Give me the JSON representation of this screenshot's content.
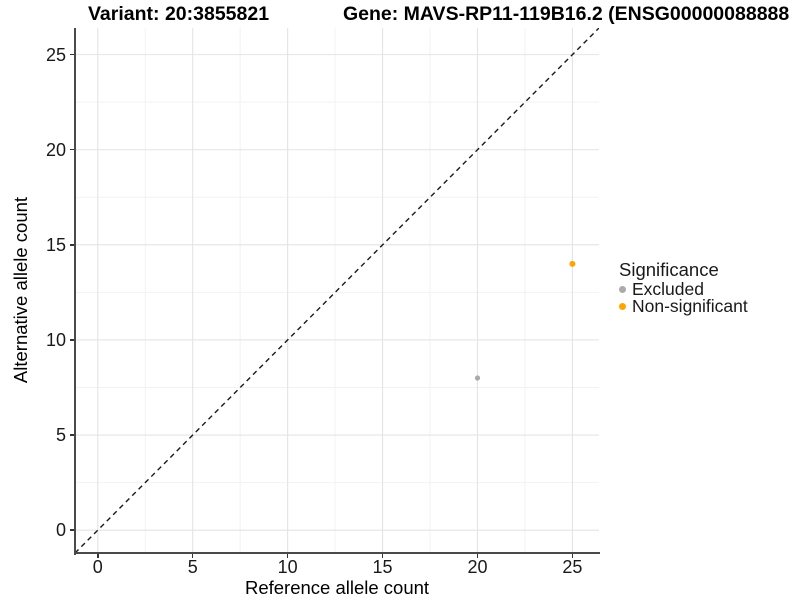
{
  "title": {
    "variant_label": "Variant: 20:3855821",
    "gene_label": "Gene: MAVS-RP11-119B16.2 (ENSG00000088888"
  },
  "chart_data": {
    "type": "scatter",
    "xlabel": "Reference allele count",
    "ylabel": "Alternative allele count",
    "xlim": [
      -1.2,
      26.4
    ],
    "ylim": [
      -1.2,
      26.4
    ],
    "x_ticks": [
      0,
      5,
      10,
      15,
      20,
      25
    ],
    "y_ticks": [
      0,
      5,
      10,
      15,
      20,
      25
    ],
    "x_minor_ticks": [
      2.5,
      7.5,
      12.5,
      17.5,
      22.5
    ],
    "y_minor_ticks": [
      2.5,
      7.5,
      12.5,
      17.5,
      22.5
    ],
    "grid": "major+minor",
    "reference_line": {
      "type": "identity y=x",
      "style": "dashed",
      "color": "#1a1a1a"
    },
    "legend_position": "right",
    "series": [
      {
        "name": "Excluded",
        "color": "#AAAAAA",
        "points": [
          [
            20,
            8
          ]
        ]
      },
      {
        "name": "Non-significant",
        "color": "#FFA500",
        "points": [
          [
            25,
            14
          ]
        ]
      }
    ]
  },
  "legend": {
    "title": "Significance",
    "items": [
      {
        "label": "Excluded",
        "color": "#AAAAAA"
      },
      {
        "label": "Non-significant",
        "color": "#FFA500"
      }
    ]
  },
  "colors": {
    "excluded": "#AAAAAA",
    "non_significant": "#FFA500",
    "grid_major": "#E4E4E4",
    "grid_minor": "#F2F2F2",
    "axis_line": "#4a4a4a",
    "dashed_line": "#1a1a1a"
  }
}
